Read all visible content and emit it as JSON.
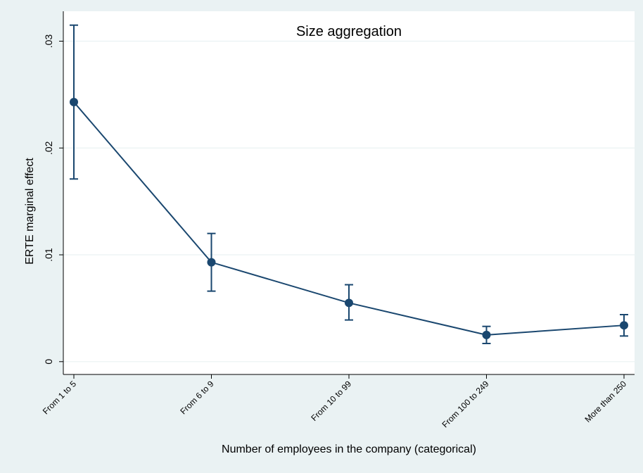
{
  "chart_data": {
    "type": "line",
    "title": "Size aggregation",
    "xlabel": "Number of employees in the company (categorical)",
    "ylabel": "ERTE marginal effect",
    "categories": [
      "From 1 to 5",
      "From 6 to 9",
      "From 10 to 99",
      "From 100 to 249",
      "More than 250"
    ],
    "series": [
      {
        "values": [
          0.0243,
          0.0093,
          0.0055,
          0.0025,
          0.0034
        ],
        "ci_low": [
          0.0171,
          0.0066,
          0.0039,
          0.0017,
          0.0024
        ],
        "ci_high": [
          0.0315,
          0.012,
          0.0072,
          0.0033,
          0.0044
        ]
      }
    ],
    "y_ticks": [
      0,
      0.01,
      0.02,
      0.03
    ],
    "y_tick_labels": [
      "0",
      ".01",
      ".02",
      ".03"
    ],
    "ylim": [
      -0.0012,
      0.0328
    ],
    "grid": true,
    "error_bars": true,
    "colors": {
      "series": "#1a476f",
      "grid": "#eaf2f3",
      "plot_bg": "#ffffff",
      "figure_bg": "#eaf2f3"
    }
  }
}
